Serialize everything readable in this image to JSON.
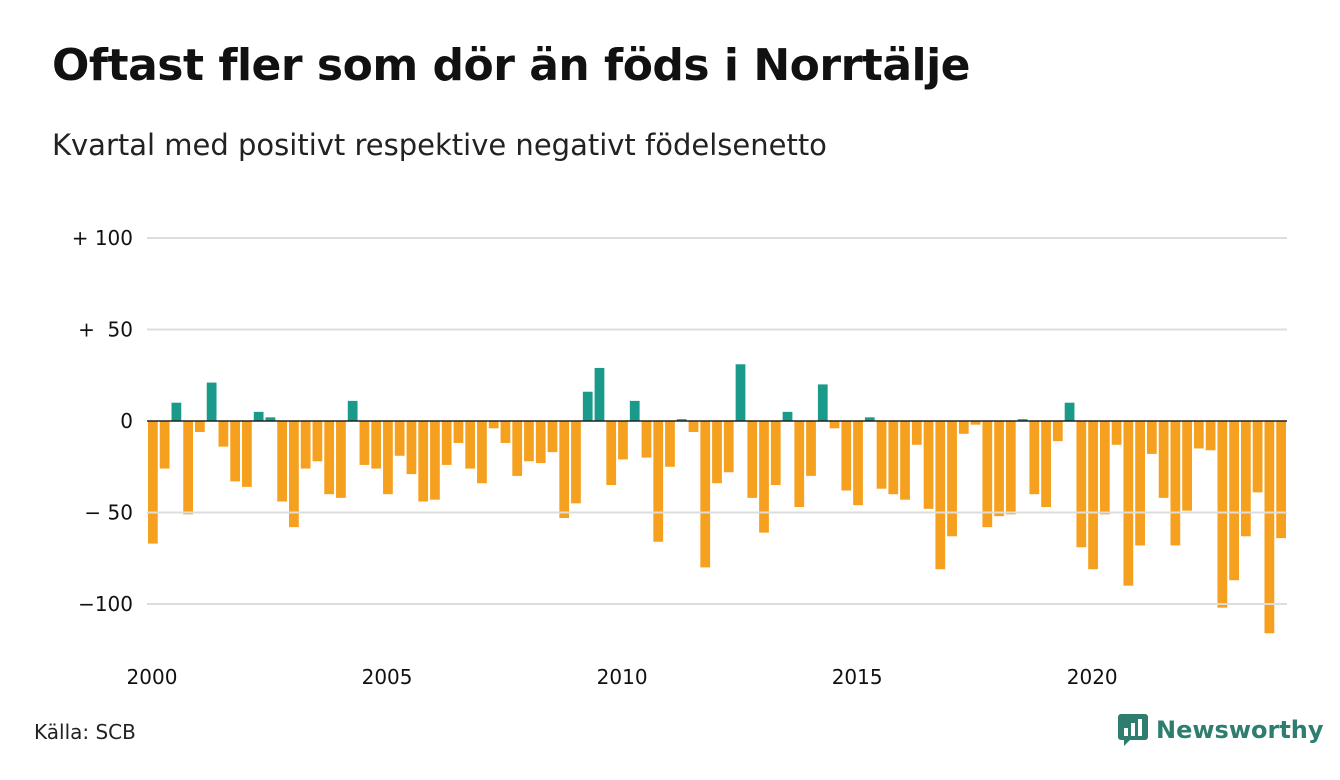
{
  "title": "Oftast fler som dör än föds i Norrtälje",
  "subtitle": "Kvartal med positivt respektive negativt födelsenetto",
  "source": "Källa: SCB",
  "brand": "Newsworthy",
  "colors": {
    "positive": "#1a9a8a",
    "negative": "#f5a01e",
    "grid": "#dddddd",
    "brand": "#2e7d6f"
  },
  "chart_data": {
    "type": "bar",
    "ylim": [
      -125,
      100
    ],
    "y_ticks": [
      {
        "value": 100,
        "label": "+ 100"
      },
      {
        "value": 50,
        "label": "+  50"
      },
      {
        "value": 0,
        "label": "0"
      },
      {
        "value": -50,
        "label": "− 50"
      },
      {
        "value": -100,
        "label": "−100"
      }
    ],
    "x_ticks": [
      {
        "quarter_index": 0,
        "label": "2000"
      },
      {
        "quarter_index": 20,
        "label": "2005"
      },
      {
        "quarter_index": 40,
        "label": "2010"
      },
      {
        "quarter_index": 60,
        "label": "2015"
      },
      {
        "quarter_index": 80,
        "label": "2020"
      }
    ],
    "grid": true,
    "start": "2000 Q1",
    "values": [
      -67,
      -26,
      10,
      -51,
      -6,
      21,
      -14,
      -33,
      -36,
      5,
      2,
      -44,
      -58,
      -26,
      -22,
      -40,
      -42,
      11,
      -24,
      -26,
      -40,
      -19,
      -29,
      -44,
      -43,
      -24,
      -12,
      -26,
      -34,
      -4,
      -12,
      -30,
      -22,
      -23,
      -17,
      -53,
      -45,
      16,
      29,
      -35,
      -21,
      11,
      -20,
      -66,
      -25,
      1,
      -6,
      -80,
      -34,
      -28,
      31,
      -42,
      -61,
      -35,
      5,
      -47,
      -30,
      20,
      -4,
      -38,
      -46,
      2,
      -37,
      -40,
      -43,
      -13,
      -48,
      -81,
      -63,
      -7,
      -2,
      -58,
      -52,
      -51,
      1,
      -40,
      -47,
      -11,
      10,
      -69,
      -81,
      -51,
      -13,
      -90,
      -68,
      -18,
      -42,
      -68,
      -49,
      -15,
      -16,
      -102,
      -87,
      -63,
      -39,
      -116,
      -64
    ]
  }
}
